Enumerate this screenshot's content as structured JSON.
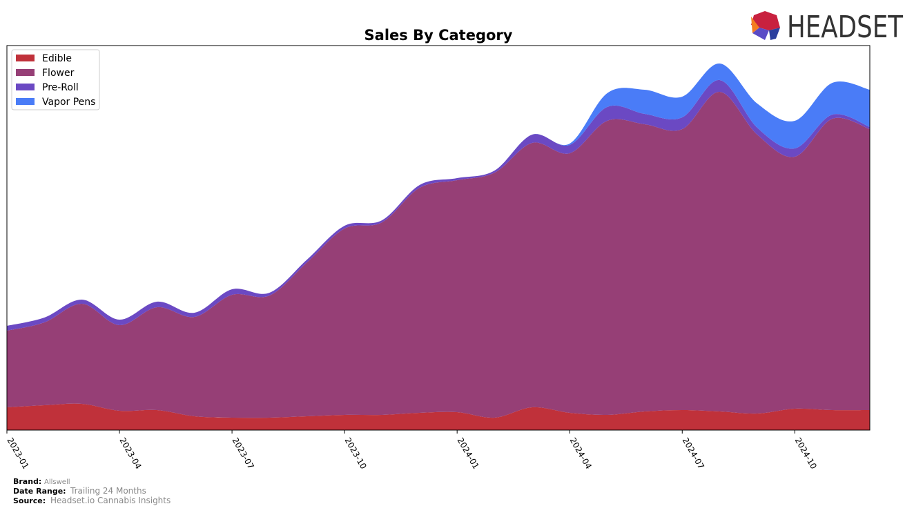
{
  "brand_logo": "HEADSET",
  "chart_data": {
    "type": "stacked-area",
    "title": "Sales By Category",
    "x": [
      "2023-01",
      "2023-02",
      "2023-03",
      "2023-04",
      "2023-05",
      "2023-06",
      "2023-07",
      "2023-08",
      "2023-09",
      "2023-10",
      "2023-11",
      "2023-12",
      "2024-01",
      "2024-02",
      "2024-03",
      "2024-04",
      "2024-05",
      "2024-06",
      "2024-07",
      "2024-08",
      "2024-09",
      "2024-10",
      "2024-11",
      "2024-12"
    ],
    "xticks": [
      "2023-01",
      "2023-04",
      "2023-07",
      "2023-10",
      "2024-01",
      "2024-04",
      "2024-07",
      "2024-10"
    ],
    "ylim": [
      0,
      557
    ],
    "legend": "upper-left",
    "series": [
      {
        "name": "Edible",
        "color": "#c0313a",
        "values": [
          33,
          36,
          38,
          28,
          29,
          20,
          18,
          18,
          20,
          22,
          22,
          25,
          26,
          18,
          33,
          25,
          22,
          27,
          29,
          27,
          24,
          31,
          29,
          29
        ]
      },
      {
        "name": "Flower",
        "color": "#963f76",
        "values": [
          111,
          120,
          145,
          124,
          149,
          144,
          178,
          177,
          223,
          270,
          279,
          326,
          336,
          355,
          383,
          376,
          426,
          416,
          407,
          463,
          404,
          365,
          422,
          407
        ]
      },
      {
        "name": "Pre-Roll",
        "color": "#6b49c3",
        "values": [
          7,
          7,
          6,
          8,
          8,
          6,
          8,
          4,
          4,
          4,
          3,
          4,
          3,
          3,
          12,
          12,
          20,
          15,
          17,
          17,
          10,
          12,
          6,
          3
        ]
      },
      {
        "name": "Vapor Pens",
        "color": "#4a7cf7",
        "values": [
          0,
          0,
          0,
          0,
          0,
          0,
          0,
          0,
          0,
          0,
          0,
          0,
          0,
          0,
          0,
          2,
          20,
          35,
          30,
          24,
          35,
          40,
          46,
          54
        ]
      }
    ]
  },
  "footer": {
    "brand_label": "Brand:",
    "brand": "Allswell",
    "date_label": "Date Range:",
    "date": "Trailing 24 Months",
    "source_label": "Source:",
    "source": "Headset.io Cannabis Insights"
  }
}
